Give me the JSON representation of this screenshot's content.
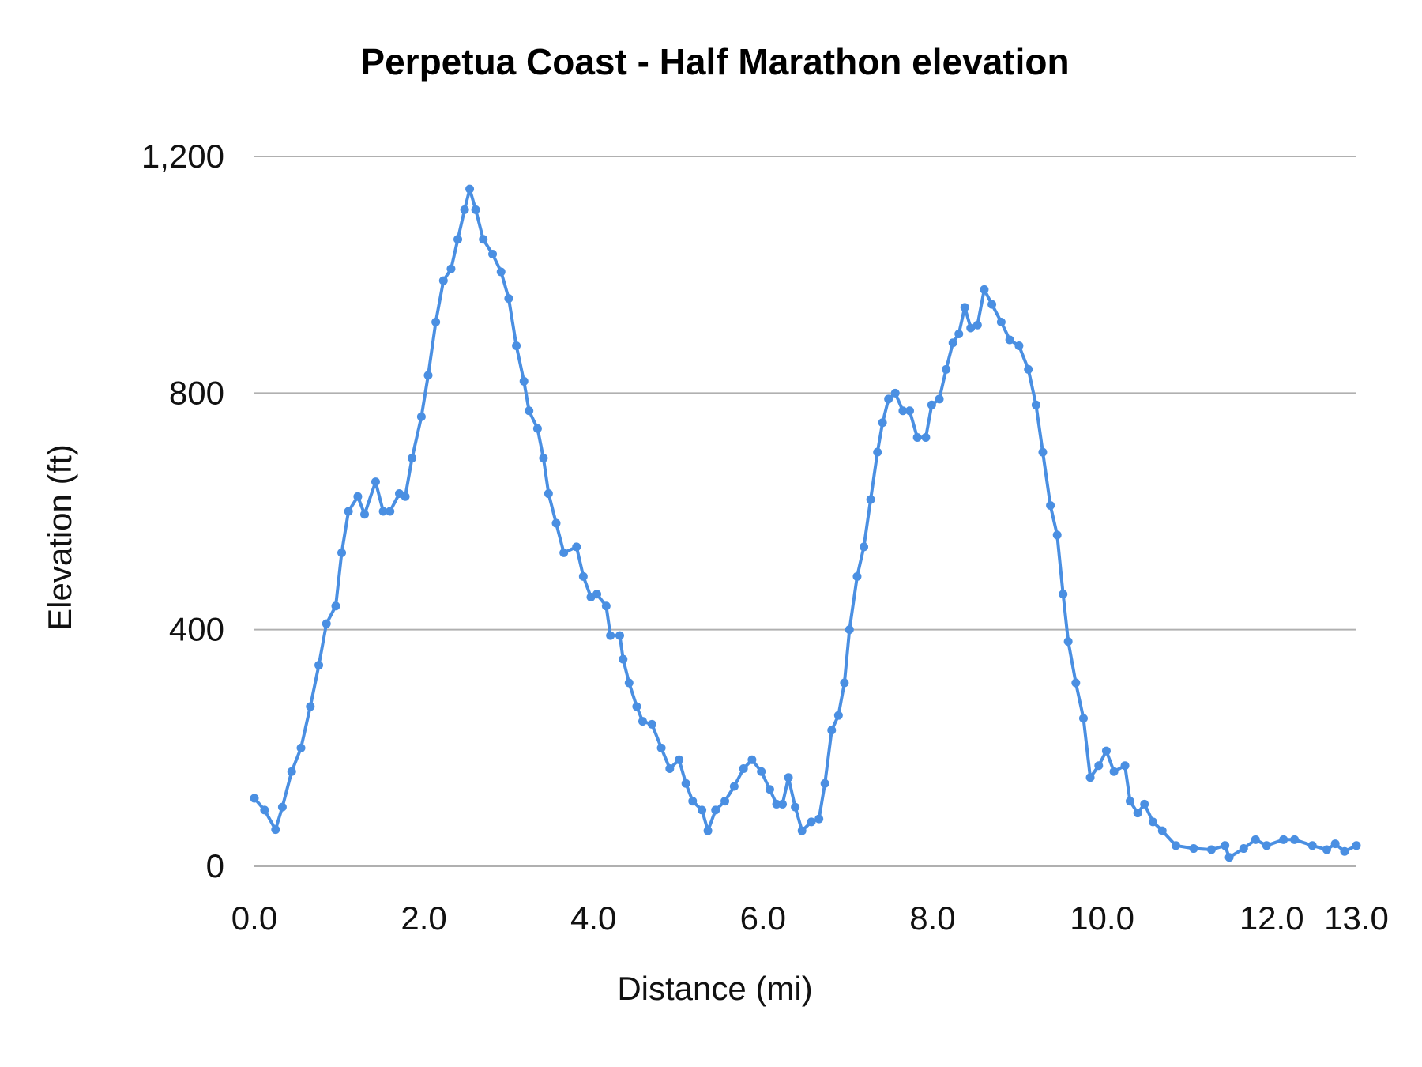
{
  "chart_data": {
    "type": "line",
    "title": "Perpetua Coast - Half Marathon elevation",
    "xlabel": "Distance (mi)",
    "ylabel": "Elevation (ft)",
    "xlim": [
      0,
      13
    ],
    "ylim": [
      0,
      1200
    ],
    "x_ticks": [
      0,
      2,
      4,
      6,
      8,
      10,
      12,
      13
    ],
    "x_tick_labels": [
      "0.0",
      "2.0",
      "4.0",
      "6.0",
      "8.0",
      "10.0",
      "12.0",
      "13.0"
    ],
    "y_ticks": [
      0,
      400,
      800,
      1200
    ],
    "y_tick_labels": [
      "0",
      "400",
      "800",
      "1,200"
    ],
    "grid": "horizontal",
    "legend": "none",
    "color": "#4a8fe2",
    "markers": true,
    "x": [
      0,
      0.12,
      0.25,
      0.33,
      0.44,
      0.55,
      0.66,
      0.76,
      0.85,
      0.96,
      1.03,
      1.11,
      1.22,
      1.3,
      1.43,
      1.52,
      1.6,
      1.71,
      1.78,
      1.86,
      1.97,
      2.05,
      2.14,
      2.23,
      2.32,
      2.4,
      2.48,
      2.54,
      2.61,
      2.7,
      2.81,
      2.91,
      3.0,
      3.09,
      3.18,
      3.24,
      3.34,
      3.41,
      3.47,
      3.56,
      3.65,
      3.8,
      3.88,
      3.97,
      4.04,
      4.15,
      4.2,
      4.31,
      4.35,
      4.42,
      4.51,
      4.58,
      4.69,
      4.8,
      4.9,
      5.01,
      5.09,
      5.17,
      5.28,
      5.35,
      5.44,
      5.55,
      5.66,
      5.77,
      5.87,
      5.98,
      6.08,
      6.16,
      6.23,
      6.3,
      6.38,
      6.46,
      6.57,
      6.66,
      6.73,
      6.81,
      6.89,
      6.96,
      7.02,
      7.11,
      7.19,
      7.27,
      7.35,
      7.41,
      7.48,
      7.56,
      7.65,
      7.73,
      7.82,
      7.92,
      7.99,
      8.08,
      8.16,
      8.24,
      8.31,
      8.38,
      8.45,
      8.53,
      8.61,
      8.7,
      8.81,
      8.91,
      9.02,
      9.13,
      9.22,
      9.3,
      9.39,
      9.47,
      9.54,
      9.6,
      9.69,
      9.78,
      9.86,
      9.96,
      10.05,
      10.14,
      10.27,
      10.33,
      10.42,
      10.5,
      10.6,
      10.71,
      10.87,
      11.08,
      11.29,
      11.45,
      11.5,
      11.67,
      11.81,
      11.94,
      12.14,
      12.27,
      12.48,
      12.65,
      12.75,
      12.86,
      13.0
    ],
    "y": [
      115,
      95,
      62,
      100,
      160,
      200,
      270,
      340,
      410,
      440,
      530,
      600,
      625,
      595,
      650,
      600,
      600,
      630,
      625,
      690,
      760,
      830,
      920,
      990,
      1010,
      1060,
      1110,
      1145,
      1110,
      1060,
      1035,
      1005,
      960,
      880,
      820,
      770,
      740,
      690,
      630,
      580,
      530,
      540,
      490,
      455,
      460,
      440,
      390,
      390,
      350,
      310,
      270,
      245,
      240,
      200,
      165,
      180,
      140,
      110,
      95,
      60,
      95,
      110,
      135,
      165,
      180,
      160,
      130,
      105,
      105,
      150,
      100,
      60,
      75,
      80,
      140,
      230,
      255,
      310,
      400,
      490,
      540,
      620,
      700,
      750,
      790,
      800,
      770,
      770,
      725,
      725,
      780,
      790,
      840,
      885,
      900,
      945,
      910,
      915,
      975,
      950,
      920,
      890,
      880,
      840,
      780,
      700,
      610,
      560,
      460,
      380,
      310,
      250,
      150,
      170,
      195,
      160,
      170,
      110,
      90,
      105,
      75,
      60,
      35,
      30,
      28,
      35,
      15,
      30,
      45,
      35,
      45,
      45,
      35,
      28,
      38,
      25,
      35
    ]
  }
}
